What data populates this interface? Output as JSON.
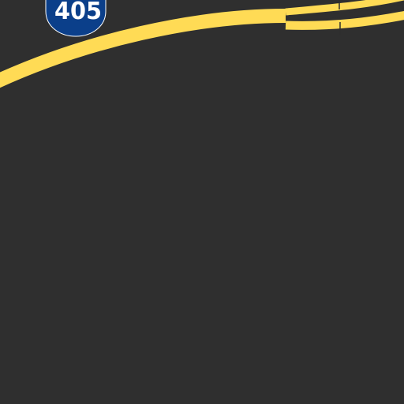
{
  "map": {
    "colors": {
      "background": "#2f2f2f",
      "highway": "#ffdb55",
      "highway_casing": "#2f2f2f",
      "shield_fill": "#0b3f8a",
      "shield_border": "#ffffff",
      "shield_text": "#ffffff"
    },
    "route_shield": {
      "number": "405",
      "icon": "interstate-shield-icon"
    }
  }
}
